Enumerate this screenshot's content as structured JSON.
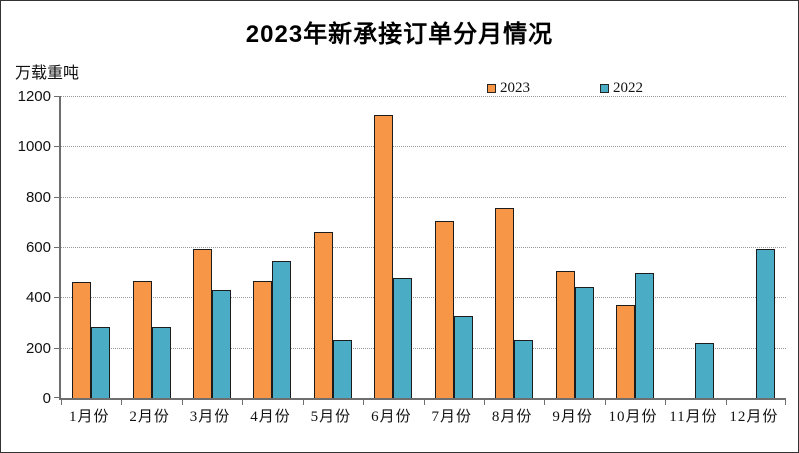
{
  "title": "2023年新承接订单分月情况",
  "y_unit_label": "万载重吨",
  "colors": {
    "series_2023": "#F79646",
    "series_2022": "#4BACC6",
    "bar_border": "#1c1c1c",
    "gridline": "#999999",
    "axis": "#6e6e6e"
  },
  "chart_data": {
    "type": "bar",
    "title": "2023年新承接订单分月情况",
    "categories": [
      "1月份",
      "2月份",
      "3月份",
      "4月份",
      "5月份",
      "6月份",
      "7月份",
      "8月份",
      "9月份",
      "10月份",
      "11月份",
      "12月份"
    ],
    "series": [
      {
        "name": "2023",
        "color": "#F79646",
        "values": [
          460,
          465,
          593,
          466,
          660,
          1123,
          705,
          755,
          505,
          370,
          null,
          null
        ]
      },
      {
        "name": "2022",
        "color": "#4BACC6",
        "values": [
          281,
          284,
          430,
          545,
          229,
          477,
          326,
          231,
          440,
          495,
          219,
          594
        ]
      }
    ],
    "xlabel": "",
    "ylabel": "万载重吨",
    "ylim": [
      0,
      1200
    ],
    "yticks": [
      0,
      200,
      400,
      600,
      800,
      1000,
      1200
    ],
    "grid": "horizontal-dotted",
    "legend_position": "top-center"
  }
}
